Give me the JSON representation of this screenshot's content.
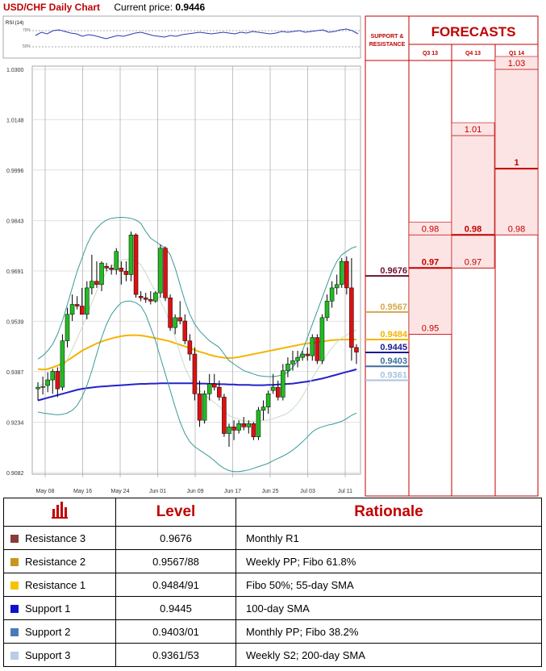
{
  "header": {
    "title": "USD/CHF Daily Chart",
    "price_label": "Current price:",
    "price_value": "0.9446"
  },
  "rsi": {
    "label": "RSI (14)",
    "level_70": "70%",
    "level_50": "50%",
    "values": [
      58,
      62,
      60,
      64,
      65,
      63,
      61,
      60,
      57,
      59,
      58,
      56,
      54,
      56,
      58,
      57,
      59,
      61,
      62,
      60,
      58,
      57,
      56,
      58,
      57,
      59,
      60,
      61,
      62,
      61,
      60,
      61,
      62,
      61,
      60,
      62,
      61,
      63,
      62,
      61,
      60,
      61,
      63,
      62,
      63,
      64,
      62,
      63,
      64,
      65,
      62,
      63,
      65,
      66,
      64,
      60
    ]
  },
  "forecast_panel": {
    "support_resistance_label": "SUPPORT & RESISTANCE",
    "title": "FORECASTS",
    "columns": [
      {
        "label": "Q3 13",
        "values": [
          "0.98",
          "0.97",
          "0.95"
        ],
        "bold": "0.97"
      },
      {
        "label": "Q4 13",
        "values": [
          "1.01",
          "0.98",
          "0.97"
        ],
        "bold": "0.98"
      },
      {
        "label": "Q1 14",
        "values": [
          "1.03",
          "1",
          "0.98"
        ],
        "bold": "1"
      }
    ]
  },
  "chart_data": {
    "type": "candlestick",
    "title": "USD/CHF Daily Chart",
    "ylim": [
      0.9082,
      1.03
    ],
    "y_ticks": [
      "1.0300",
      "1.0148",
      "0.9996",
      "0.9843",
      "0.9691",
      "0.9539",
      "0.9387",
      "0.9234",
      "0.9082"
    ],
    "x_ticks": [
      "May 08",
      "May 16",
      "May 24",
      "Jun 01",
      "Jun 09",
      "Jun 17",
      "Jun 25",
      "Jul 03",
      "Jul 11"
    ],
    "candles": [
      {
        "o": 0.9335,
        "h": 0.9355,
        "l": 0.93,
        "c": 0.934
      },
      {
        "o": 0.934,
        "h": 0.9372,
        "l": 0.9318,
        "c": 0.9342
      },
      {
        "o": 0.9345,
        "h": 0.9385,
        "l": 0.9325,
        "c": 0.9362
      },
      {
        "o": 0.9362,
        "h": 0.9395,
        "l": 0.932,
        "c": 0.9388
      },
      {
        "o": 0.9388,
        "h": 0.94,
        "l": 0.931,
        "c": 0.9335
      },
      {
        "o": 0.934,
        "h": 0.95,
        "l": 0.933,
        "c": 0.948
      },
      {
        "o": 0.948,
        "h": 0.958,
        "l": 0.946,
        "c": 0.956
      },
      {
        "o": 0.956,
        "h": 0.962,
        "l": 0.954,
        "c": 0.959
      },
      {
        "o": 0.959,
        "h": 0.9615,
        "l": 0.9575,
        "c": 0.9585
      },
      {
        "o": 0.9585,
        "h": 0.964,
        "l": 0.956,
        "c": 0.956
      },
      {
        "o": 0.956,
        "h": 0.966,
        "l": 0.9545,
        "c": 0.964
      },
      {
        "o": 0.964,
        "h": 0.974,
        "l": 0.962,
        "c": 0.966
      },
      {
        "o": 0.966,
        "h": 0.972,
        "l": 0.964,
        "c": 0.965
      },
      {
        "o": 0.965,
        "h": 0.972,
        "l": 0.963,
        "c": 0.9715
      },
      {
        "o": 0.9705,
        "h": 0.9715,
        "l": 0.969,
        "c": 0.97
      },
      {
        "o": 0.97,
        "h": 0.971,
        "l": 0.968,
        "c": 0.9695
      },
      {
        "o": 0.9695,
        "h": 0.976,
        "l": 0.968,
        "c": 0.975
      },
      {
        "o": 0.97,
        "h": 0.972,
        "l": 0.965,
        "c": 0.969
      },
      {
        "o": 0.969,
        "h": 0.972,
        "l": 0.966,
        "c": 0.968
      },
      {
        "o": 0.968,
        "h": 0.981,
        "l": 0.966,
        "c": 0.98
      },
      {
        "o": 0.98,
        "h": 0.9805,
        "l": 0.961,
        "c": 0.962
      },
      {
        "o": 0.9615,
        "h": 0.963,
        "l": 0.96,
        "c": 0.961
      },
      {
        "o": 0.961,
        "h": 0.9625,
        "l": 0.9595,
        "c": 0.9605
      },
      {
        "o": 0.9605,
        "h": 0.963,
        "l": 0.959,
        "c": 0.96
      },
      {
        "o": 0.96,
        "h": 0.963,
        "l": 0.9595,
        "c": 0.9625
      },
      {
        "o": 0.9625,
        "h": 0.977,
        "l": 0.961,
        "c": 0.976
      },
      {
        "o": 0.976,
        "h": 0.9765,
        "l": 0.96,
        "c": 0.961
      },
      {
        "o": 0.961,
        "h": 0.962,
        "l": 0.951,
        "c": 0.952
      },
      {
        "o": 0.952,
        "h": 0.956,
        "l": 0.95,
        "c": 0.955
      },
      {
        "o": 0.955,
        "h": 0.96,
        "l": 0.953,
        "c": 0.954
      },
      {
        "o": 0.954,
        "h": 0.956,
        "l": 0.947,
        "c": 0.948
      },
      {
        "o": 0.948,
        "h": 0.95,
        "l": 0.942,
        "c": 0.944
      },
      {
        "o": 0.944,
        "h": 0.946,
        "l": 0.93,
        "c": 0.932
      },
      {
        "o": 0.932,
        "h": 0.936,
        "l": 0.922,
        "c": 0.924
      },
      {
        "o": 0.924,
        "h": 0.933,
        "l": 0.923,
        "c": 0.932
      },
      {
        "o": 0.932,
        "h": 0.938,
        "l": 0.93,
        "c": 0.935
      },
      {
        "o": 0.935,
        "h": 0.938,
        "l": 0.933,
        "c": 0.934
      },
      {
        "o": 0.934,
        "h": 0.936,
        "l": 0.93,
        "c": 0.931
      },
      {
        "o": 0.931,
        "h": 0.932,
        "l": 0.919,
        "c": 0.92
      },
      {
        "o": 0.92,
        "h": 0.923,
        "l": 0.916,
        "c": 0.922
      },
      {
        "o": 0.922,
        "h": 0.924,
        "l": 0.918,
        "c": 0.921
      },
      {
        "o": 0.921,
        "h": 0.924,
        "l": 0.92,
        "c": 0.923
      },
      {
        "o": 0.923,
        "h": 0.925,
        "l": 0.921,
        "c": 0.922
      },
      {
        "o": 0.922,
        "h": 0.924,
        "l": 0.92,
        "c": 0.923
      },
      {
        "o": 0.923,
        "h": 0.9235,
        "l": 0.918,
        "c": 0.919
      },
      {
        "o": 0.919,
        "h": 0.928,
        "l": 0.918,
        "c": 0.927
      },
      {
        "o": 0.927,
        "h": 0.93,
        "l": 0.924,
        "c": 0.928
      },
      {
        "o": 0.928,
        "h": 0.933,
        "l": 0.926,
        "c": 0.932
      },
      {
        "o": 0.933,
        "h": 0.938,
        "l": 0.932,
        "c": 0.934
      },
      {
        "o": 0.934,
        "h": 0.936,
        "l": 0.93,
        "c": 0.931
      },
      {
        "o": 0.931,
        "h": 0.941,
        "l": 0.93,
        "c": 0.939
      },
      {
        "o": 0.939,
        "h": 0.943,
        "l": 0.937,
        "c": 0.941
      },
      {
        "o": 0.941,
        "h": 0.945,
        "l": 0.939,
        "c": 0.942
      },
      {
        "o": 0.942,
        "h": 0.945,
        "l": 0.94,
        "c": 0.943
      },
      {
        "o": 0.943,
        "h": 0.945,
        "l": 0.942,
        "c": 0.944
      },
      {
        "o": 0.944,
        "h": 0.946,
        "l": 0.942,
        "c": 0.9435
      },
      {
        "o": 0.9435,
        "h": 0.95,
        "l": 0.942,
        "c": 0.949
      },
      {
        "o": 0.949,
        "h": 0.95,
        "l": 0.941,
        "c": 0.942
      },
      {
        "o": 0.942,
        "h": 0.956,
        "l": 0.941,
        "c": 0.955
      },
      {
        "o": 0.955,
        "h": 0.962,
        "l": 0.954,
        "c": 0.96
      },
      {
        "o": 0.96,
        "h": 0.966,
        "l": 0.958,
        "c": 0.964
      },
      {
        "o": 0.964,
        "h": 0.968,
        "l": 0.962,
        "c": 0.965
      },
      {
        "o": 0.965,
        "h": 0.973,
        "l": 0.964,
        "c": 0.972
      },
      {
        "o": 0.972,
        "h": 0.9735,
        "l": 0.962,
        "c": 0.964
      },
      {
        "o": 0.964,
        "h": 0.973,
        "l": 0.942,
        "c": 0.946
      },
      {
        "o": 0.946,
        "h": 0.947,
        "l": 0.941,
        "c": 0.9446
      }
    ],
    "series": [
      {
        "values": [
          0.9395,
          0.9393,
          0.9395,
          0.94,
          0.9405,
          0.9412,
          0.942,
          0.943,
          0.944,
          0.945,
          0.9458,
          0.9465,
          0.9472,
          0.9478,
          0.9483,
          0.9487,
          0.9491,
          0.9494,
          0.9496,
          0.9497,
          0.9497,
          0.9496,
          0.9494,
          0.9491,
          0.9488,
          0.9485,
          0.9482,
          0.9478,
          0.9473,
          0.9468,
          0.9463,
          0.9458,
          0.9452,
          0.9447,
          0.9443,
          0.9438,
          0.9434,
          0.9431,
          0.9429,
          0.9428,
          0.9429,
          0.9431,
          0.9434,
          0.9437,
          0.944,
          0.9443,
          0.9446,
          0.9449,
          0.9452,
          0.9455,
          0.9458,
          0.9461,
          0.9464,
          0.9467,
          0.947,
          0.9472,
          0.9474,
          0.9476,
          0.9478,
          0.948,
          0.9482,
          0.9483,
          0.9484,
          0.9484,
          0.9484,
          0.9484
        ],
        "color": "#f4b400"
      },
      {
        "values": [
          0.93,
          0.9304,
          0.9308,
          0.9312,
          0.9316,
          0.932,
          0.9324,
          0.9328,
          0.9332,
          0.9335,
          0.9337,
          0.9339,
          0.9341,
          0.9342,
          0.9343,
          0.9344,
          0.9345,
          0.9346,
          0.9347,
          0.9348,
          0.9349,
          0.935,
          0.935,
          0.9351,
          0.9351,
          0.9352,
          0.9352,
          0.9352,
          0.9352,
          0.9352,
          0.9352,
          0.9352,
          0.9352,
          0.9351,
          0.9351,
          0.935,
          0.935,
          0.9349,
          0.9349,
          0.9348,
          0.9348,
          0.9347,
          0.9347,
          0.9347,
          0.9346,
          0.9346,
          0.9346,
          0.9347,
          0.9347,
          0.9348,
          0.9349,
          0.935,
          0.9351,
          0.9353,
          0.9355,
          0.9357,
          0.936,
          0.9363,
          0.9366,
          0.937,
          0.9374,
          0.9378,
          0.9382,
          0.9386,
          0.939,
          0.9394
        ],
        "color": "#2222cc"
      },
      {
        "values": [
          0.9425,
          0.9435,
          0.945,
          0.947,
          0.95,
          0.954,
          0.959,
          0.964,
          0.969,
          0.973,
          0.977,
          0.98,
          0.982,
          0.9835,
          0.9845,
          0.985,
          0.9852,
          0.9853,
          0.9852,
          0.985,
          0.9845,
          0.9835,
          0.981,
          0.979,
          0.978,
          0.977,
          0.976,
          0.974,
          0.97,
          0.965,
          0.96,
          0.956,
          0.953,
          0.951,
          0.9495,
          0.948,
          0.947,
          0.946,
          0.944,
          0.942,
          0.941,
          0.94,
          0.939,
          0.9385,
          0.938,
          0.9375,
          0.9373,
          0.9372,
          0.9372,
          0.9374,
          0.9378,
          0.9385,
          0.94,
          0.942,
          0.945,
          0.949,
          0.953,
          0.957,
          0.961,
          0.965,
          0.969,
          0.972,
          0.974,
          0.975,
          0.976,
          0.9765
        ],
        "color": "#3a9a9a"
      },
      {
        "values": [
          0.9265,
          0.9262,
          0.926,
          0.9258,
          0.9257,
          0.9258,
          0.9262,
          0.927,
          0.9285,
          0.931,
          0.9345,
          0.939,
          0.944,
          0.949,
          0.953,
          0.956,
          0.958,
          0.9595,
          0.96,
          0.96,
          0.9595,
          0.9585,
          0.956,
          0.952,
          0.948,
          0.943,
          0.938,
          0.933,
          0.928,
          0.9235,
          0.92,
          0.9175,
          0.916,
          0.915,
          0.914,
          0.913,
          0.9118,
          0.9105,
          0.9095,
          0.9088,
          0.9085,
          0.9085,
          0.9087,
          0.909,
          0.9095,
          0.91,
          0.9105,
          0.911,
          0.9118,
          0.9125,
          0.9132,
          0.914,
          0.915,
          0.9162,
          0.9175,
          0.919,
          0.9205,
          0.9215,
          0.922,
          0.9225,
          0.9228,
          0.9232,
          0.9237,
          0.9245,
          0.9255,
          0.9262
        ],
        "color": "#3a9a9a"
      },
      {
        "values": [
          0.9345,
          0.9348,
          0.9355,
          0.9364,
          0.9378,
          0.9397,
          0.9424,
          0.9455,
          0.9487,
          0.952,
          0.9557,
          0.9595,
          0.963,
          0.9662,
          0.9687,
          0.9705,
          0.9716,
          0.9724,
          0.9726,
          0.9725,
          0.972,
          0.971,
          0.9685,
          0.9655,
          0.963,
          0.96,
          0.957,
          0.9535,
          0.949,
          0.9443,
          0.94,
          0.9368,
          0.9345,
          0.933,
          0.9318,
          0.9305,
          0.9294,
          0.9282,
          0.9268,
          0.9254,
          0.9248,
          0.9243,
          0.9238,
          0.9237,
          0.9238,
          0.9238,
          0.9239,
          0.9241,
          0.9245,
          0.925,
          0.9255,
          0.9262,
          0.9275,
          0.9291,
          0.9313,
          0.934,
          0.9368,
          0.9393,
          0.9415,
          0.9438,
          0.9459,
          0.9476,
          0.9489,
          0.9497,
          0.9507,
          0.9513
        ],
        "color": "#c8dcc8"
      }
    ],
    "levels": [
      {
        "value": "0.9676",
        "color": "#6b1030"
      },
      {
        "value": "0.9567",
        "color": "#d4a84a"
      },
      {
        "value": "0.9484",
        "color": "#f4b400"
      },
      {
        "value": "0.9445",
        "color": "#1a1a9a"
      },
      {
        "value": "0.9403",
        "color": "#3a6ea0"
      },
      {
        "value": "0.9361",
        "color": "#a8c4dc"
      }
    ]
  },
  "table": {
    "headers": [
      "Level",
      "Rationale"
    ],
    "rows": [
      {
        "name": "Resistance 3",
        "level": "0.9676",
        "rationale": "Monthly R1",
        "color": "#8b3a3a"
      },
      {
        "name": "Resistance 2",
        "level": "0.9567/88",
        "rationale": "Weekly PP; Fibo 61.8%",
        "color": "#c8961e"
      },
      {
        "name": "Resistance 1",
        "level": "0.9484/91",
        "rationale": "Fibo 50%; 55-day SMA",
        "color": "#f4c400"
      },
      {
        "name": "Support 1",
        "level": "0.9445",
        "rationale": "100-day SMA",
        "color": "#1010d0"
      },
      {
        "name": "Support 2",
        "level": "0.9403/01",
        "rationale": "Monthly PP; Fibo 38.2%",
        "color": "#4a7ab8"
      },
      {
        "name": "Support 3",
        "level": "0.9361/53",
        "rationale": "Weekly S2; 200-day SMA",
        "color": "#b8cce4"
      }
    ]
  }
}
